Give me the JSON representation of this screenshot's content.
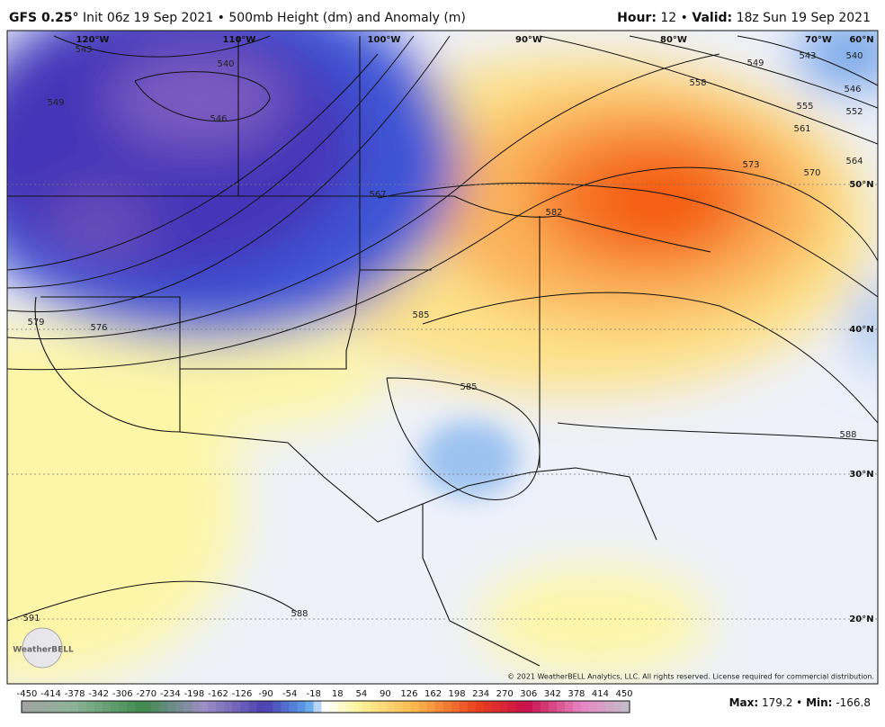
{
  "header": {
    "model": "GFS 0.25°",
    "description": "Init 06z 19 Sep 2021 • 500mb Height (dm) and Anomaly (m)",
    "hour_label": "Hour:",
    "hour": 12,
    "separator": "•",
    "valid_label": "Valid:",
    "valid": "18z Sun 19 Sep 2021"
  },
  "map": {
    "longitude_labels": [
      "120°W",
      "110°W",
      "100°W",
      "90°W",
      "80°W",
      "70°W"
    ],
    "latitude_labels": [
      "60°N",
      "50°N",
      "40°N",
      "30°N",
      "20°N"
    ],
    "contour_labels": [
      543,
      540,
      549,
      546,
      567,
      582,
      585,
      579,
      576,
      585,
      588,
      591,
      588,
      549,
      543,
      540,
      546,
      558,
      555,
      561,
      552,
      573,
      570,
      564
    ],
    "copyright": "© 2021 WeatherBELL Analytics, LLC. All rights reserved. License required for commercial distribution.",
    "logo": "WeatherBELL"
  },
  "colorbar": {
    "ticks": [
      -450,
      -414,
      -378,
      -342,
      -306,
      -270,
      -234,
      -198,
      -162,
      -126,
      -90,
      -54,
      -18,
      18,
      54,
      90,
      126,
      162,
      198,
      234,
      270,
      306,
      342,
      378,
      414,
      450
    ]
  },
  "footer": {
    "max_label": "Max:",
    "max": 179.2,
    "separator": "•",
    "min_label": "Min:",
    "min": -166.8
  }
}
